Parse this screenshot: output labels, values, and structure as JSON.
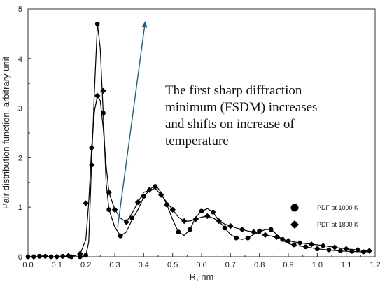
{
  "chart_data": {
    "type": "line",
    "title": "",
    "xlabel": "R, nm",
    "ylabel": "Pair distribution function, arbitrary unit",
    "xlim": [
      0.0,
      1.2
    ],
    "ylim": [
      0,
      5
    ],
    "xticks": [
      "0.0",
      "0.1",
      "0.2",
      "0.3",
      "0.4",
      "0.5",
      "0.6",
      "0.7",
      "0.8",
      "0.9",
      "1.0",
      "1.1",
      "1.2"
    ],
    "yticks": [
      "0",
      "1",
      "2",
      "3",
      "4",
      "5"
    ],
    "grid": false,
    "legend_position": "right",
    "series": [
      {
        "name": "PDF at 1000 K",
        "marker": "circle",
        "color": "#000000",
        "line": [
          [
            0.0,
            0.0
          ],
          [
            0.1,
            0.0
          ],
          [
            0.18,
            0.0
          ],
          [
            0.2,
            0.02
          ],
          [
            0.21,
            0.3
          ],
          [
            0.22,
            1.9
          ],
          [
            0.23,
            3.4
          ],
          [
            0.24,
            4.7
          ],
          [
            0.25,
            4.2
          ],
          [
            0.26,
            2.9
          ],
          [
            0.27,
            1.5
          ],
          [
            0.28,
            0.95
          ],
          [
            0.3,
            0.6
          ],
          [
            0.32,
            0.42
          ],
          [
            0.34,
            0.5
          ],
          [
            0.36,
            0.75
          ],
          [
            0.38,
            0.95
          ],
          [
            0.4,
            1.2
          ],
          [
            0.42,
            1.35
          ],
          [
            0.44,
            1.45
          ],
          [
            0.46,
            1.3
          ],
          [
            0.48,
            1.05
          ],
          [
            0.5,
            0.75
          ],
          [
            0.52,
            0.5
          ],
          [
            0.54,
            0.43
          ],
          [
            0.56,
            0.55
          ],
          [
            0.58,
            0.8
          ],
          [
            0.6,
            0.92
          ],
          [
            0.62,
            0.97
          ],
          [
            0.64,
            0.9
          ],
          [
            0.66,
            0.72
          ],
          [
            0.68,
            0.58
          ],
          [
            0.7,
            0.45
          ],
          [
            0.72,
            0.38
          ],
          [
            0.74,
            0.35
          ],
          [
            0.76,
            0.38
          ],
          [
            0.78,
            0.45
          ],
          [
            0.8,
            0.5
          ],
          [
            0.82,
            0.55
          ],
          [
            0.84,
            0.55
          ],
          [
            0.86,
            0.45
          ],
          [
            0.88,
            0.33
          ],
          [
            0.9,
            0.27
          ],
          [
            0.92,
            0.23
          ],
          [
            0.96,
            0.2
          ],
          [
            1.0,
            0.16
          ],
          [
            1.05,
            0.13
          ],
          [
            1.1,
            0.11
          ],
          [
            1.15,
            0.1
          ],
          [
            1.18,
            0.1
          ]
        ],
        "markers": [
          [
            0.0,
            0.0
          ],
          [
            0.04,
            0.01
          ],
          [
            0.08,
            0.0
          ],
          [
            0.12,
            0.01
          ],
          [
            0.15,
            0.0
          ],
          [
            0.18,
            0.0
          ],
          [
            0.2,
            0.03
          ],
          [
            0.22,
            1.85
          ],
          [
            0.24,
            4.7
          ],
          [
            0.26,
            2.9
          ],
          [
            0.28,
            0.95
          ],
          [
            0.32,
            0.42
          ],
          [
            0.36,
            0.78
          ],
          [
            0.4,
            1.22
          ],
          [
            0.44,
            1.42
          ],
          [
            0.48,
            1.05
          ],
          [
            0.52,
            0.5
          ],
          [
            0.56,
            0.55
          ],
          [
            0.6,
            0.92
          ],
          [
            0.64,
            0.9
          ],
          [
            0.68,
            0.58
          ],
          [
            0.72,
            0.38
          ],
          [
            0.76,
            0.38
          ],
          [
            0.8,
            0.52
          ],
          [
            0.84,
            0.55
          ],
          [
            0.88,
            0.35
          ],
          [
            0.92,
            0.24
          ],
          [
            0.96,
            0.2
          ],
          [
            1.0,
            0.16
          ],
          [
            1.04,
            0.14
          ],
          [
            1.08,
            0.12
          ],
          [
            1.12,
            0.11
          ],
          [
            1.16,
            0.1
          ]
        ]
      },
      {
        "name": "PDF at 1800 K",
        "marker": "diamond",
        "color": "#000000",
        "line": [
          [
            0.0,
            0.0
          ],
          [
            0.1,
            0.0
          ],
          [
            0.16,
            0.02
          ],
          [
            0.18,
            0.05
          ],
          [
            0.2,
            0.35
          ],
          [
            0.21,
            1.1
          ],
          [
            0.22,
            2.2
          ],
          [
            0.23,
            2.95
          ],
          [
            0.24,
            3.25
          ],
          [
            0.25,
            3.15
          ],
          [
            0.26,
            2.6
          ],
          [
            0.27,
            1.85
          ],
          [
            0.28,
            1.3
          ],
          [
            0.3,
            0.95
          ],
          [
            0.32,
            0.78
          ],
          [
            0.34,
            0.7
          ],
          [
            0.36,
            0.88
          ],
          [
            0.38,
            1.1
          ],
          [
            0.4,
            1.3
          ],
          [
            0.42,
            1.34
          ],
          [
            0.44,
            1.38
          ],
          [
            0.46,
            1.25
          ],
          [
            0.48,
            1.1
          ],
          [
            0.5,
            0.95
          ],
          [
            0.52,
            0.8
          ],
          [
            0.54,
            0.72
          ],
          [
            0.56,
            0.72
          ],
          [
            0.58,
            0.76
          ],
          [
            0.6,
            0.8
          ],
          [
            0.62,
            0.82
          ],
          [
            0.64,
            0.78
          ],
          [
            0.66,
            0.72
          ],
          [
            0.68,
            0.66
          ],
          [
            0.7,
            0.62
          ],
          [
            0.72,
            0.58
          ],
          [
            0.74,
            0.55
          ],
          [
            0.76,
            0.52
          ],
          [
            0.78,
            0.5
          ],
          [
            0.8,
            0.47
          ],
          [
            0.82,
            0.44
          ],
          [
            0.84,
            0.42
          ],
          [
            0.86,
            0.38
          ],
          [
            0.88,
            0.35
          ],
          [
            0.9,
            0.32
          ],
          [
            0.94,
            0.28
          ],
          [
            1.0,
            0.24
          ],
          [
            1.05,
            0.2
          ],
          [
            1.1,
            0.16
          ],
          [
            1.15,
            0.13
          ],
          [
            1.18,
            0.11
          ]
        ],
        "markers": [
          [
            0.02,
            0.0
          ],
          [
            0.06,
            0.01
          ],
          [
            0.1,
            0.0
          ],
          [
            0.14,
            0.02
          ],
          [
            0.18,
            0.06
          ],
          [
            0.2,
            1.08
          ],
          [
            0.22,
            2.2
          ],
          [
            0.24,
            3.25
          ],
          [
            0.26,
            3.35
          ],
          [
            0.28,
            1.3
          ],
          [
            0.3,
            0.95
          ],
          [
            0.34,
            0.7
          ],
          [
            0.38,
            1.1
          ],
          [
            0.42,
            1.35
          ],
          [
            0.46,
            1.25
          ],
          [
            0.5,
            0.95
          ],
          [
            0.54,
            0.72
          ],
          [
            0.58,
            0.76
          ],
          [
            0.62,
            0.82
          ],
          [
            0.66,
            0.72
          ],
          [
            0.7,
            0.62
          ],
          [
            0.74,
            0.55
          ],
          [
            0.78,
            0.5
          ],
          [
            0.82,
            0.44
          ],
          [
            0.86,
            0.4
          ],
          [
            0.9,
            0.32
          ],
          [
            0.94,
            0.28
          ],
          [
            0.98,
            0.25
          ],
          [
            1.02,
            0.22
          ],
          [
            1.06,
            0.19
          ],
          [
            1.1,
            0.16
          ],
          [
            1.14,
            0.14
          ],
          [
            1.18,
            0.12
          ]
        ]
      }
    ],
    "annotation": {
      "lines": [
        "The first sharp diffraction",
        "minimum (FSDM) increases",
        "and shifts on increase of",
        "temperature"
      ],
      "arrow_from": [
        0.31,
        0.6
      ],
      "arrow_to": [
        0.41,
        4.8
      ],
      "arrow_color": "#1f5f8b"
    }
  }
}
